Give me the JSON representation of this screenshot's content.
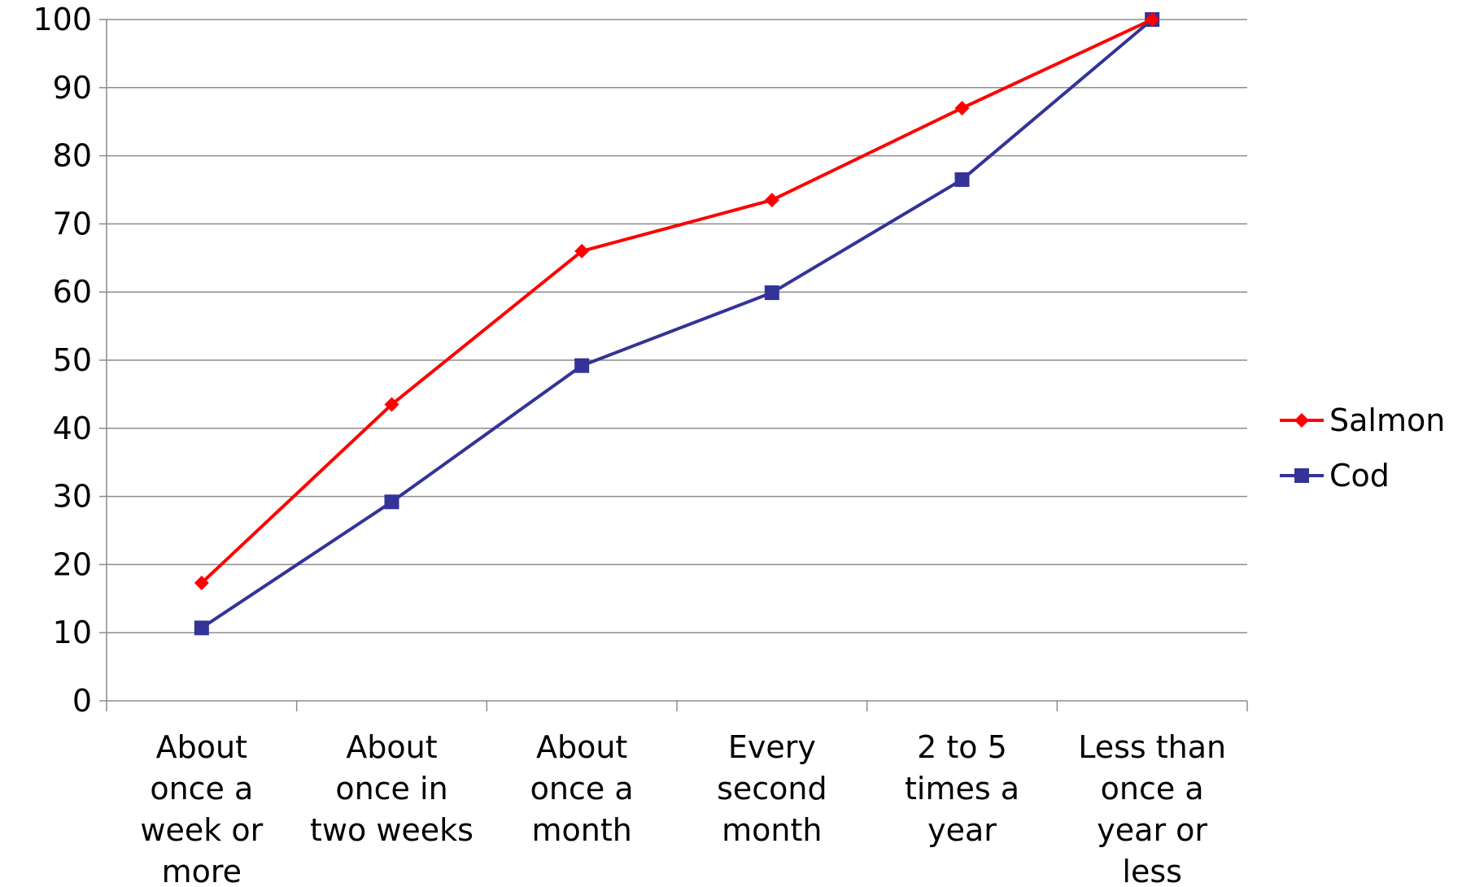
{
  "chart_data": {
    "type": "line",
    "categories": [
      [
        "About",
        "once a",
        "week or",
        "more"
      ],
      [
        "About",
        "once in",
        "two weeks"
      ],
      [
        "About",
        "once a",
        "month"
      ],
      [
        "Every",
        "second",
        "month"
      ],
      [
        "2 to 5",
        "times a",
        "year"
      ],
      [
        "Less than",
        "once a",
        "year or",
        "less"
      ]
    ],
    "series": [
      {
        "name": "Salmon",
        "color": "#ff0000",
        "marker": "diamond",
        "values": [
          17.3,
          43.5,
          66,
          73.5,
          87,
          100
        ]
      },
      {
        "name": "Cod",
        "color": "#333399",
        "marker": "square",
        "values": [
          10.7,
          29.2,
          49.2,
          59.9,
          76.5,
          100
        ]
      }
    ],
    "yticks": [
      0,
      10,
      20,
      30,
      40,
      50,
      60,
      70,
      80,
      90,
      100
    ],
    "ylim": [
      0,
      100
    ],
    "grid": true,
    "legend_position": "right"
  }
}
